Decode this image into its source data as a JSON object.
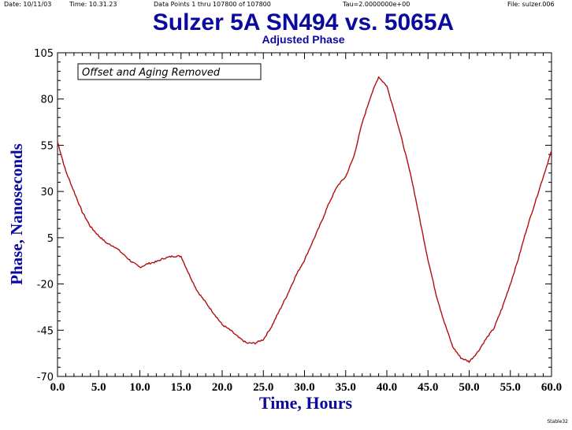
{
  "header": {
    "date": "Date: 10/11/03",
    "time": "Time: 10.31.23",
    "data_points": "Data Points 1 thru 107800 of 107800",
    "tau": "Tau=2.0000000e+00",
    "file": "File: sulzer.006"
  },
  "footer": {
    "tag": "Stable32"
  },
  "colors": {
    "title": "#0a0a9e",
    "trace": "#b01010",
    "axis": "#000000"
  },
  "chart_data": {
    "type": "line",
    "title": "Sulzer 5A SN494 vs. 5065A",
    "subtitle": "Adjusted Phase",
    "annotation": "Offset and Aging Removed",
    "xlabel": "Time, Hours",
    "ylabel": "Phase, Nanoseconds",
    "xlim": [
      0,
      60
    ],
    "ylim": [
      -70,
      105
    ],
    "x_ticks": [
      "0.0",
      "5.0",
      "10.0",
      "15.0",
      "20.0",
      "25.0",
      "30.0",
      "35.0",
      "40.0",
      "45.0",
      "50.0",
      "55.0",
      "60.0"
    ],
    "y_ticks": [
      "105",
      "80",
      "55",
      "30",
      "5",
      "-20",
      "-45",
      "-70"
    ],
    "grid": false,
    "series": [
      {
        "x": [
          0,
          1,
          2,
          3,
          4,
          5,
          6,
          7,
          8,
          9,
          10,
          11,
          12,
          13,
          14,
          15,
          16,
          17,
          18,
          19,
          20,
          21,
          22,
          23,
          24,
          25,
          26,
          27,
          28,
          29,
          30,
          31,
          32,
          33,
          34,
          35,
          36,
          37,
          38,
          39,
          40,
          41,
          42,
          43,
          44,
          45,
          46,
          47,
          48,
          49,
          50,
          51,
          52,
          53,
          54,
          55,
          56,
          57,
          58,
          59,
          60
        ],
        "y": [
          57,
          41,
          30,
          19,
          11,
          6,
          2,
          0,
          -4,
          -8,
          -11,
          -9,
          -8,
          -6,
          -5,
          -5,
          -15,
          -24,
          -30,
          -36,
          -42,
          -45,
          -49,
          -52,
          -52,
          -50,
          -43,
          -34,
          -25,
          -15,
          -7,
          3,
          13,
          24,
          33,
          38,
          49,
          67,
          81,
          92,
          87,
          72,
          55,
          37,
          15,
          -7,
          -26,
          -41,
          -54,
          -60,
          -62,
          -57,
          -50,
          -44,
          -33,
          -20,
          -6,
          10,
          24,
          38,
          52
        ]
      }
    ]
  }
}
